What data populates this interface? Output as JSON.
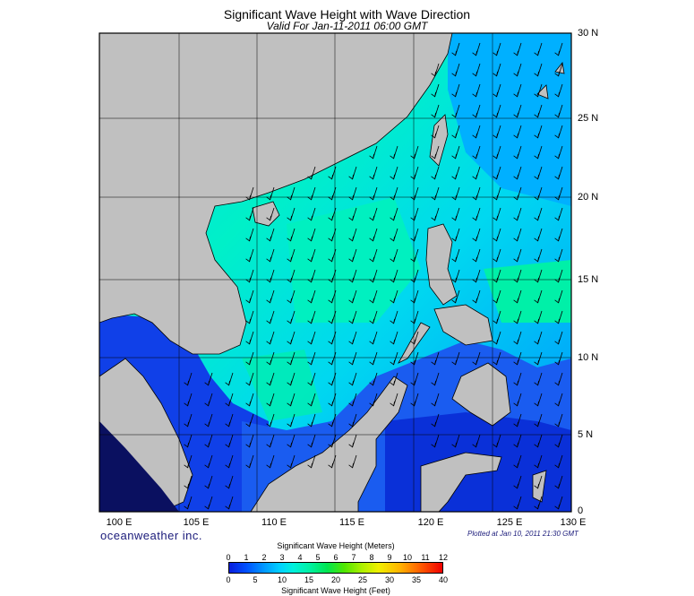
{
  "title": "Significant Wave Height with Wave Direction",
  "subtitle": "Valid For Jan-11-2011 06:00 GMT",
  "lat_labels": [
    "30 N",
    "25 N",
    "20 N",
    "15 N",
    "10 N",
    "5 N",
    "0"
  ],
  "lon_labels": [
    "100 E",
    "105 E",
    "110 E",
    "115 E",
    "120 E",
    "125 E",
    "130 E"
  ],
  "brand": "oceanweather inc.",
  "plotted": "Plotted at Jan 10, 2011 21:30 GMT",
  "legend": {
    "title_meters": "Significant Wave Height (Meters)",
    "title_feet": "Significant Wave Height (Feet)",
    "ticks_meters": [
      "0",
      "1",
      "2",
      "3",
      "4",
      "5",
      "6",
      "7",
      "8",
      "9",
      "10",
      "11",
      "12"
    ],
    "ticks_feet": [
      "0",
      "5",
      "10",
      "15",
      "20",
      "25",
      "30",
      "35",
      "40"
    ]
  },
  "colors": {
    "land": "#c0c0c0",
    "sea_high": "#00f0c8",
    "sea_mid": "#00c8ff",
    "sea_low": "#1040e8",
    "arrow": "#000000"
  }
}
